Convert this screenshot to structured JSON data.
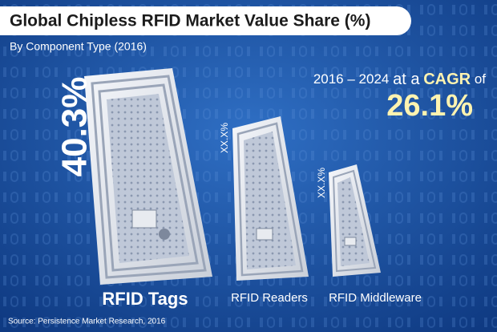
{
  "header": {
    "title": "Global Chipless RFID Market Value Share (%)",
    "subtitle": "By Component Type (2016)"
  },
  "cagr": {
    "period": "2016 – 2024",
    "connector": "at a",
    "label": "CAGR",
    "of": "of",
    "value": "26.1%"
  },
  "items": [
    {
      "label": "RFID Tags",
      "share": "40.3%"
    },
    {
      "label": "RFID Readers",
      "share": "XX.X%"
    },
    {
      "label": "RFID Middleware",
      "share": "XX.X%"
    }
  ],
  "source": "Source: Persistence Market Research, 2016"
}
